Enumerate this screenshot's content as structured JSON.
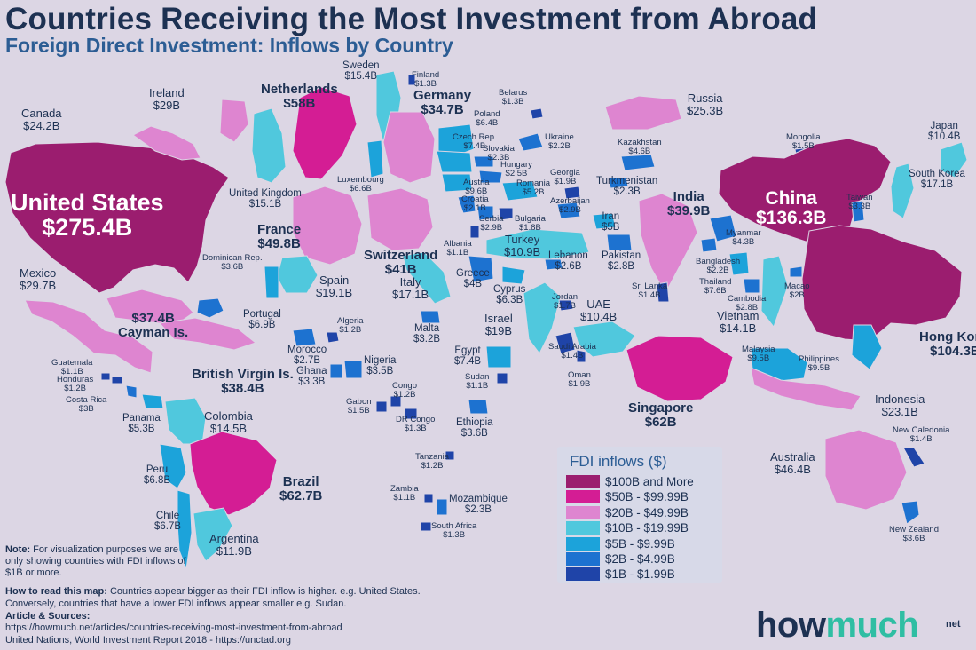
{
  "title": "Countries Receiving the Most Investment from Abroad",
  "subtitle": "Foreign Direct Investment: Inflows by Country",
  "legend": {
    "title": "FDI inflows ($)",
    "items": [
      {
        "label": "$100B and More",
        "color": "#9b1d6f"
      },
      {
        "label": "$50B - $99.99B",
        "color": "#d41d94"
      },
      {
        "label": "$20B - $49.99B",
        "color": "#de85d0"
      },
      {
        "label": "$10B - $19.99B",
        "color": "#50c8dd"
      },
      {
        "label": "$5B - $9.99B",
        "color": "#1ca3da"
      },
      {
        "label": "$2B - $4.99B",
        "color": "#1d72d0"
      },
      {
        "label": "$1B - $1.99B",
        "color": "#1f44a8"
      }
    ]
  },
  "countries": [
    {
      "name": "United States",
      "value": "$275.4B",
      "tier": 0
    },
    {
      "name": "Canada",
      "value": "$24.2B",
      "tier": 2
    },
    {
      "name": "Mexico",
      "value": "$29.7B",
      "tier": 2
    },
    {
      "name": "Cayman Is.",
      "value": "$37.4B",
      "tier": 2
    },
    {
      "name": "Dominican Rep.",
      "value": "$3.6B",
      "tier": 5
    },
    {
      "name": "British Virgin Is.",
      "value": "$38.4B",
      "tier": 2
    },
    {
      "name": "Guatemala",
      "value": "$1.1B",
      "tier": 6
    },
    {
      "name": "Honduras",
      "value": "$1.2B",
      "tier": 6
    },
    {
      "name": "Costa Rica",
      "value": "$3B",
      "tier": 5
    },
    {
      "name": "Panama",
      "value": "$5.3B",
      "tier": 4
    },
    {
      "name": "Colombia",
      "value": "$14.5B",
      "tier": 3
    },
    {
      "name": "Peru",
      "value": "$6.8B",
      "tier": 4
    },
    {
      "name": "Chile",
      "value": "$6.7B",
      "tier": 4
    },
    {
      "name": "Brazil",
      "value": "$62.7B",
      "tier": 1
    },
    {
      "name": "Argentina",
      "value": "$11.9B",
      "tier": 3
    },
    {
      "name": "Ireland",
      "value": "$29B",
      "tier": 2
    },
    {
      "name": "United Kingdom",
      "value": "$15.1B",
      "tier": 3
    },
    {
      "name": "Netherlands",
      "value": "$58B",
      "tier": 1
    },
    {
      "name": "Sweden",
      "value": "$15.4B",
      "tier": 3
    },
    {
      "name": "Finland",
      "value": "$1.3B",
      "tier": 6
    },
    {
      "name": "Germany",
      "value": "$34.7B",
      "tier": 2
    },
    {
      "name": "Belarus",
      "value": "$1.3B",
      "tier": 6
    },
    {
      "name": "Poland",
      "value": "$6.4B",
      "tier": 4
    },
    {
      "name": "Czech Rep.",
      "value": "$7.4B",
      "tier": 4
    },
    {
      "name": "Slovakia",
      "value": "$2.3B",
      "tier": 5
    },
    {
      "name": "Ukraine",
      "value": "$2.2B",
      "tier": 5
    },
    {
      "name": "Hungary",
      "value": "$2.5B",
      "tier": 5
    },
    {
      "name": "Luxembourg",
      "value": "$6.6B",
      "tier": 4
    },
    {
      "name": "Austria",
      "value": "$9.6B",
      "tier": 4
    },
    {
      "name": "Romania",
      "value": "$5.2B",
      "tier": 4
    },
    {
      "name": "Georgia",
      "value": "$1.9B",
      "tier": 6
    },
    {
      "name": "Croatia",
      "value": "$2.1B",
      "tier": 5
    },
    {
      "name": "Serbia",
      "value": "$2.9B",
      "tier": 5
    },
    {
      "name": "Bulgaria",
      "value": "$1.8B",
      "tier": 6
    },
    {
      "name": "Azerbaijan",
      "value": "$2.9B",
      "tier": 5
    },
    {
      "name": "France",
      "value": "$49.8B",
      "tier": 2
    },
    {
      "name": "Switzerland",
      "value": "$41B",
      "tier": 2
    },
    {
      "name": "Albania",
      "value": "$1.1B",
      "tier": 6
    },
    {
      "name": "Turkey",
      "value": "$10.9B",
      "tier": 3
    },
    {
      "name": "Spain",
      "value": "$19.1B",
      "tier": 3
    },
    {
      "name": "Italy",
      "value": "$17.1B",
      "tier": 3
    },
    {
      "name": "Greece",
      "value": "$4B",
      "tier": 5
    },
    {
      "name": "Cyprus",
      "value": "$6.3B",
      "tier": 4
    },
    {
      "name": "Lebanon",
      "value": "$2.6B",
      "tier": 5
    },
    {
      "name": "Portugal",
      "value": "$6.9B",
      "tier": 4
    },
    {
      "name": "Malta",
      "value": "$3.2B",
      "tier": 5
    },
    {
      "name": "Israel",
      "value": "$19B",
      "tier": 3
    },
    {
      "name": "Jordan",
      "value": "$1.7B",
      "tier": 6
    },
    {
      "name": "Algeria",
      "value": "$1.2B",
      "tier": 6
    },
    {
      "name": "Morocco",
      "value": "$2.7B",
      "tier": 5
    },
    {
      "name": "Ghana",
      "value": "$3.3B",
      "tier": 5
    },
    {
      "name": "Nigeria",
      "value": "$3.5B",
      "tier": 5
    },
    {
      "name": "Egypt",
      "value": "$7.4B",
      "tier": 4
    },
    {
      "name": "Saudi Arabia",
      "value": "$1.4B",
      "tier": 6
    },
    {
      "name": "Oman",
      "value": "$1.9B",
      "tier": 6
    },
    {
      "name": "UAE",
      "value": "$10.4B",
      "tier": 3
    },
    {
      "name": "Congo",
      "value": "$1.2B",
      "tier": 6
    },
    {
      "name": "Gabon",
      "value": "$1.5B",
      "tier": 6
    },
    {
      "name": "Sudan",
      "value": "$1.1B",
      "tier": 6
    },
    {
      "name": "DR Congo",
      "value": "$1.3B",
      "tier": 6
    },
    {
      "name": "Ethiopia",
      "value": "$3.6B",
      "tier": 5
    },
    {
      "name": "Tanzania",
      "value": "$1.2B",
      "tier": 6
    },
    {
      "name": "Zambia",
      "value": "$1.1B",
      "tier": 6
    },
    {
      "name": "Mozambique",
      "value": "$2.3B",
      "tier": 5
    },
    {
      "name": "South Africa",
      "value": "$1.3B",
      "tier": 6
    },
    {
      "name": "Russia",
      "value": "$25.3B",
      "tier": 2
    },
    {
      "name": "Kazakhstan",
      "value": "$4.6B",
      "tier": 5
    },
    {
      "name": "Turkmenistan",
      "value": "$2.3B",
      "tier": 5
    },
    {
      "name": "Iran",
      "value": "$5B",
      "tier": 4
    },
    {
      "name": "Pakistan",
      "value": "$2.8B",
      "tier": 5
    },
    {
      "name": "India",
      "value": "$39.9B",
      "tier": 2
    },
    {
      "name": "Sri Lanka",
      "value": "$1.4B",
      "tier": 6
    },
    {
      "name": "Bangladesh",
      "value": "$2.2B",
      "tier": 5
    },
    {
      "name": "Myanmar",
      "value": "$4.3B",
      "tier": 5
    },
    {
      "name": "Thailand",
      "value": "$7.6B",
      "tier": 4
    },
    {
      "name": "Cambodia",
      "value": "$2.8B",
      "tier": 5
    },
    {
      "name": "Vietnam",
      "value": "$14.1B",
      "tier": 3
    },
    {
      "name": "Malaysia",
      "value": "$9.5B",
      "tier": 4
    },
    {
      "name": "Singapore",
      "value": "$62B",
      "tier": 1
    },
    {
      "name": "Mongolia",
      "value": "$1.5B",
      "tier": 6
    },
    {
      "name": "China",
      "value": "$136.3B",
      "tier": 0
    },
    {
      "name": "Macao",
      "value": "$2B",
      "tier": 5
    },
    {
      "name": "Hong Kong",
      "value": "$104.3B",
      "tier": 0
    },
    {
      "name": "Taiwan",
      "value": "$3.3B",
      "tier": 5
    },
    {
      "name": "South Korea",
      "value": "$17.1B",
      "tier": 3
    },
    {
      "name": "Japan",
      "value": "$10.4B",
      "tier": 3
    },
    {
      "name": "Philippines",
      "value": "$9.5B",
      "tier": 4
    },
    {
      "name": "Indonesia",
      "value": "$23.1B",
      "tier": 2
    },
    {
      "name": "Australia",
      "value": "$46.4B",
      "tier": 2
    },
    {
      "name": "New Caledonia",
      "value": "$1.4B",
      "tier": 6
    },
    {
      "name": "New Zealand",
      "value": "$3.6B",
      "tier": 5
    }
  ],
  "note": {
    "label": "Note:",
    "text": "For visualization purposes we are only showing countries with FDI inflows of $1B or more."
  },
  "how_to_read": {
    "label": "How to read this map:",
    "text": "Countries appear bigger as their FDI inflow is higher. e.g. United States. Conversely, countries that have a lower FDI inflows appear smaller e.g. Sudan."
  },
  "sources": {
    "label": "Article & Sources:",
    "line1": "https://howmuch.net/articles/countries-receiving-most-investment-from-abroad",
    "line2": "United Nations, World Investment Report 2018 - https://unctad.org"
  },
  "logo": {
    "part1": "how",
    "part2": "much",
    "suffix": "net"
  }
}
